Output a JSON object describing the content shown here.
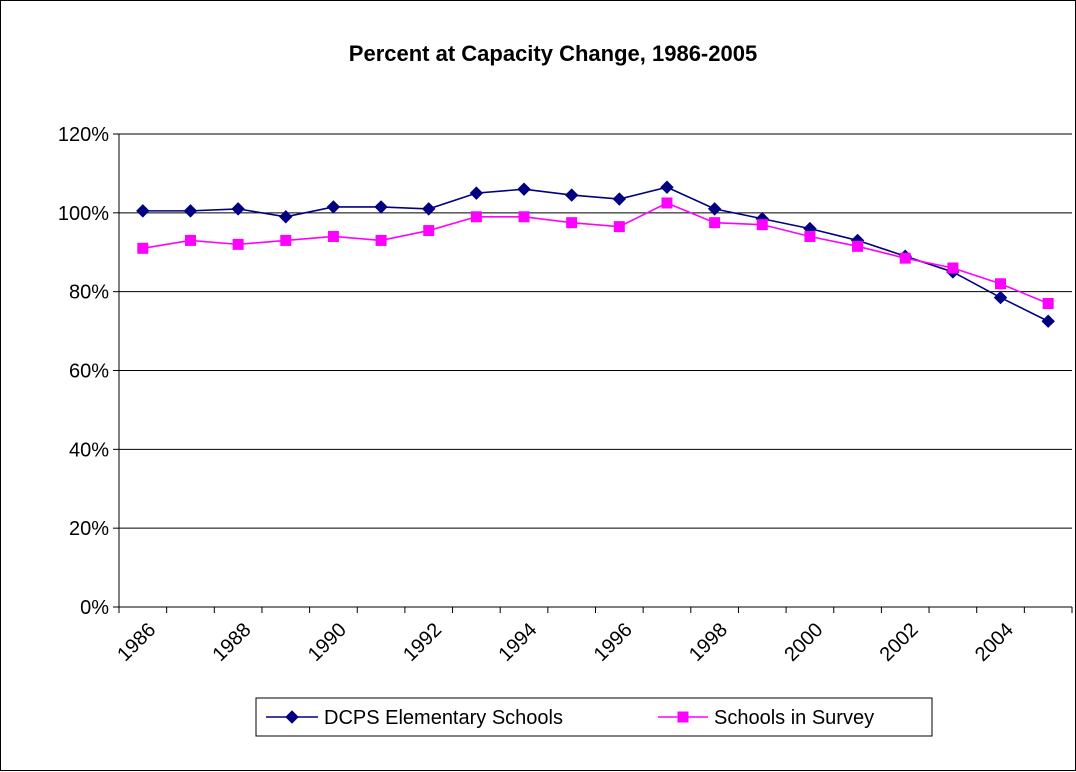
{
  "chart_data": {
    "type": "line",
    "title": "Percent at Capacity Change, 1986-2005",
    "xlabel": "",
    "ylabel": "",
    "x": [
      1986,
      1987,
      1988,
      1989,
      1990,
      1991,
      1992,
      1993,
      1994,
      1995,
      1996,
      1997,
      1998,
      1999,
      2000,
      2001,
      2002,
      2003,
      2004,
      2005
    ],
    "x_tick_labels": [
      "1986",
      "1988",
      "1990",
      "1992",
      "1994",
      "1996",
      "1998",
      "2000",
      "2002",
      "2004"
    ],
    "ylim": [
      0,
      120
    ],
    "y_tick_labels": [
      "0%",
      "20%",
      "40%",
      "60%",
      "80%",
      "100%",
      "120%"
    ],
    "grid": true,
    "legend": "bottom",
    "series": [
      {
        "name": "DCPS Elementary Schools",
        "color": "#000080",
        "marker": "diamond",
        "values": [
          100.5,
          100.5,
          101,
          99,
          101.5,
          101.5,
          101,
          105,
          106,
          104.5,
          103.5,
          106.5,
          101,
          98.5,
          96,
          93,
          89,
          85,
          78.5,
          72.5
        ]
      },
      {
        "name": "Schools in Survey",
        "color": "#ff00ff",
        "marker": "square",
        "values": [
          91,
          93,
          92,
          93,
          94,
          93,
          95.5,
          99,
          99,
          97.5,
          96.5,
          102.5,
          97.5,
          97,
          94,
          91.5,
          88.5,
          86,
          82,
          77
        ]
      }
    ]
  }
}
